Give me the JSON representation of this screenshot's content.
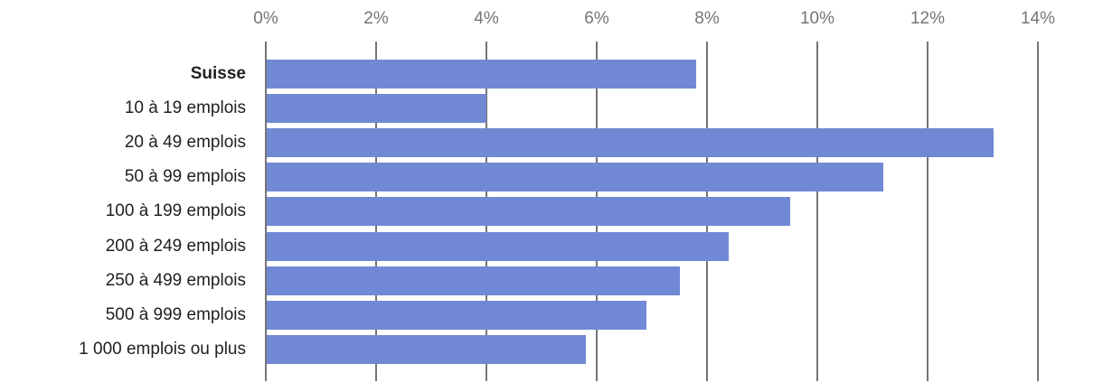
{
  "chart_data": {
    "type": "bar",
    "orientation": "horizontal",
    "title": "",
    "xlabel": "",
    "ylabel": "",
    "unit": "%",
    "categories": [
      "Suisse",
      "10 à 19 emplois",
      "20 à 49 emplois",
      "50 à 99 emplois",
      "100 à 199 emplois",
      "200 à 249 emplois",
      "250 à 499 emplois",
      "500 à 999 emplois",
      "1 000 emplois ou plus"
    ],
    "values": [
      7.8,
      4.0,
      13.2,
      11.2,
      9.5,
      8.4,
      7.5,
      6.9,
      5.8
    ],
    "bold_categories": [
      "Suisse"
    ],
    "xlim": [
      0,
      14
    ],
    "x_ticks": [
      "0%",
      "2%",
      "4%",
      "6%",
      "8%",
      "10%",
      "12%",
      "14%"
    ],
    "x_tick_values": [
      0,
      2,
      4,
      6,
      8,
      10,
      12,
      14
    ],
    "grid": "vertical",
    "legend_position": "none",
    "colors": {
      "bar": "#7189d4",
      "gridline": "#757575",
      "axis_tick_label": "#757575",
      "category_label": "#212121",
      "background": "#ffffff"
    }
  }
}
